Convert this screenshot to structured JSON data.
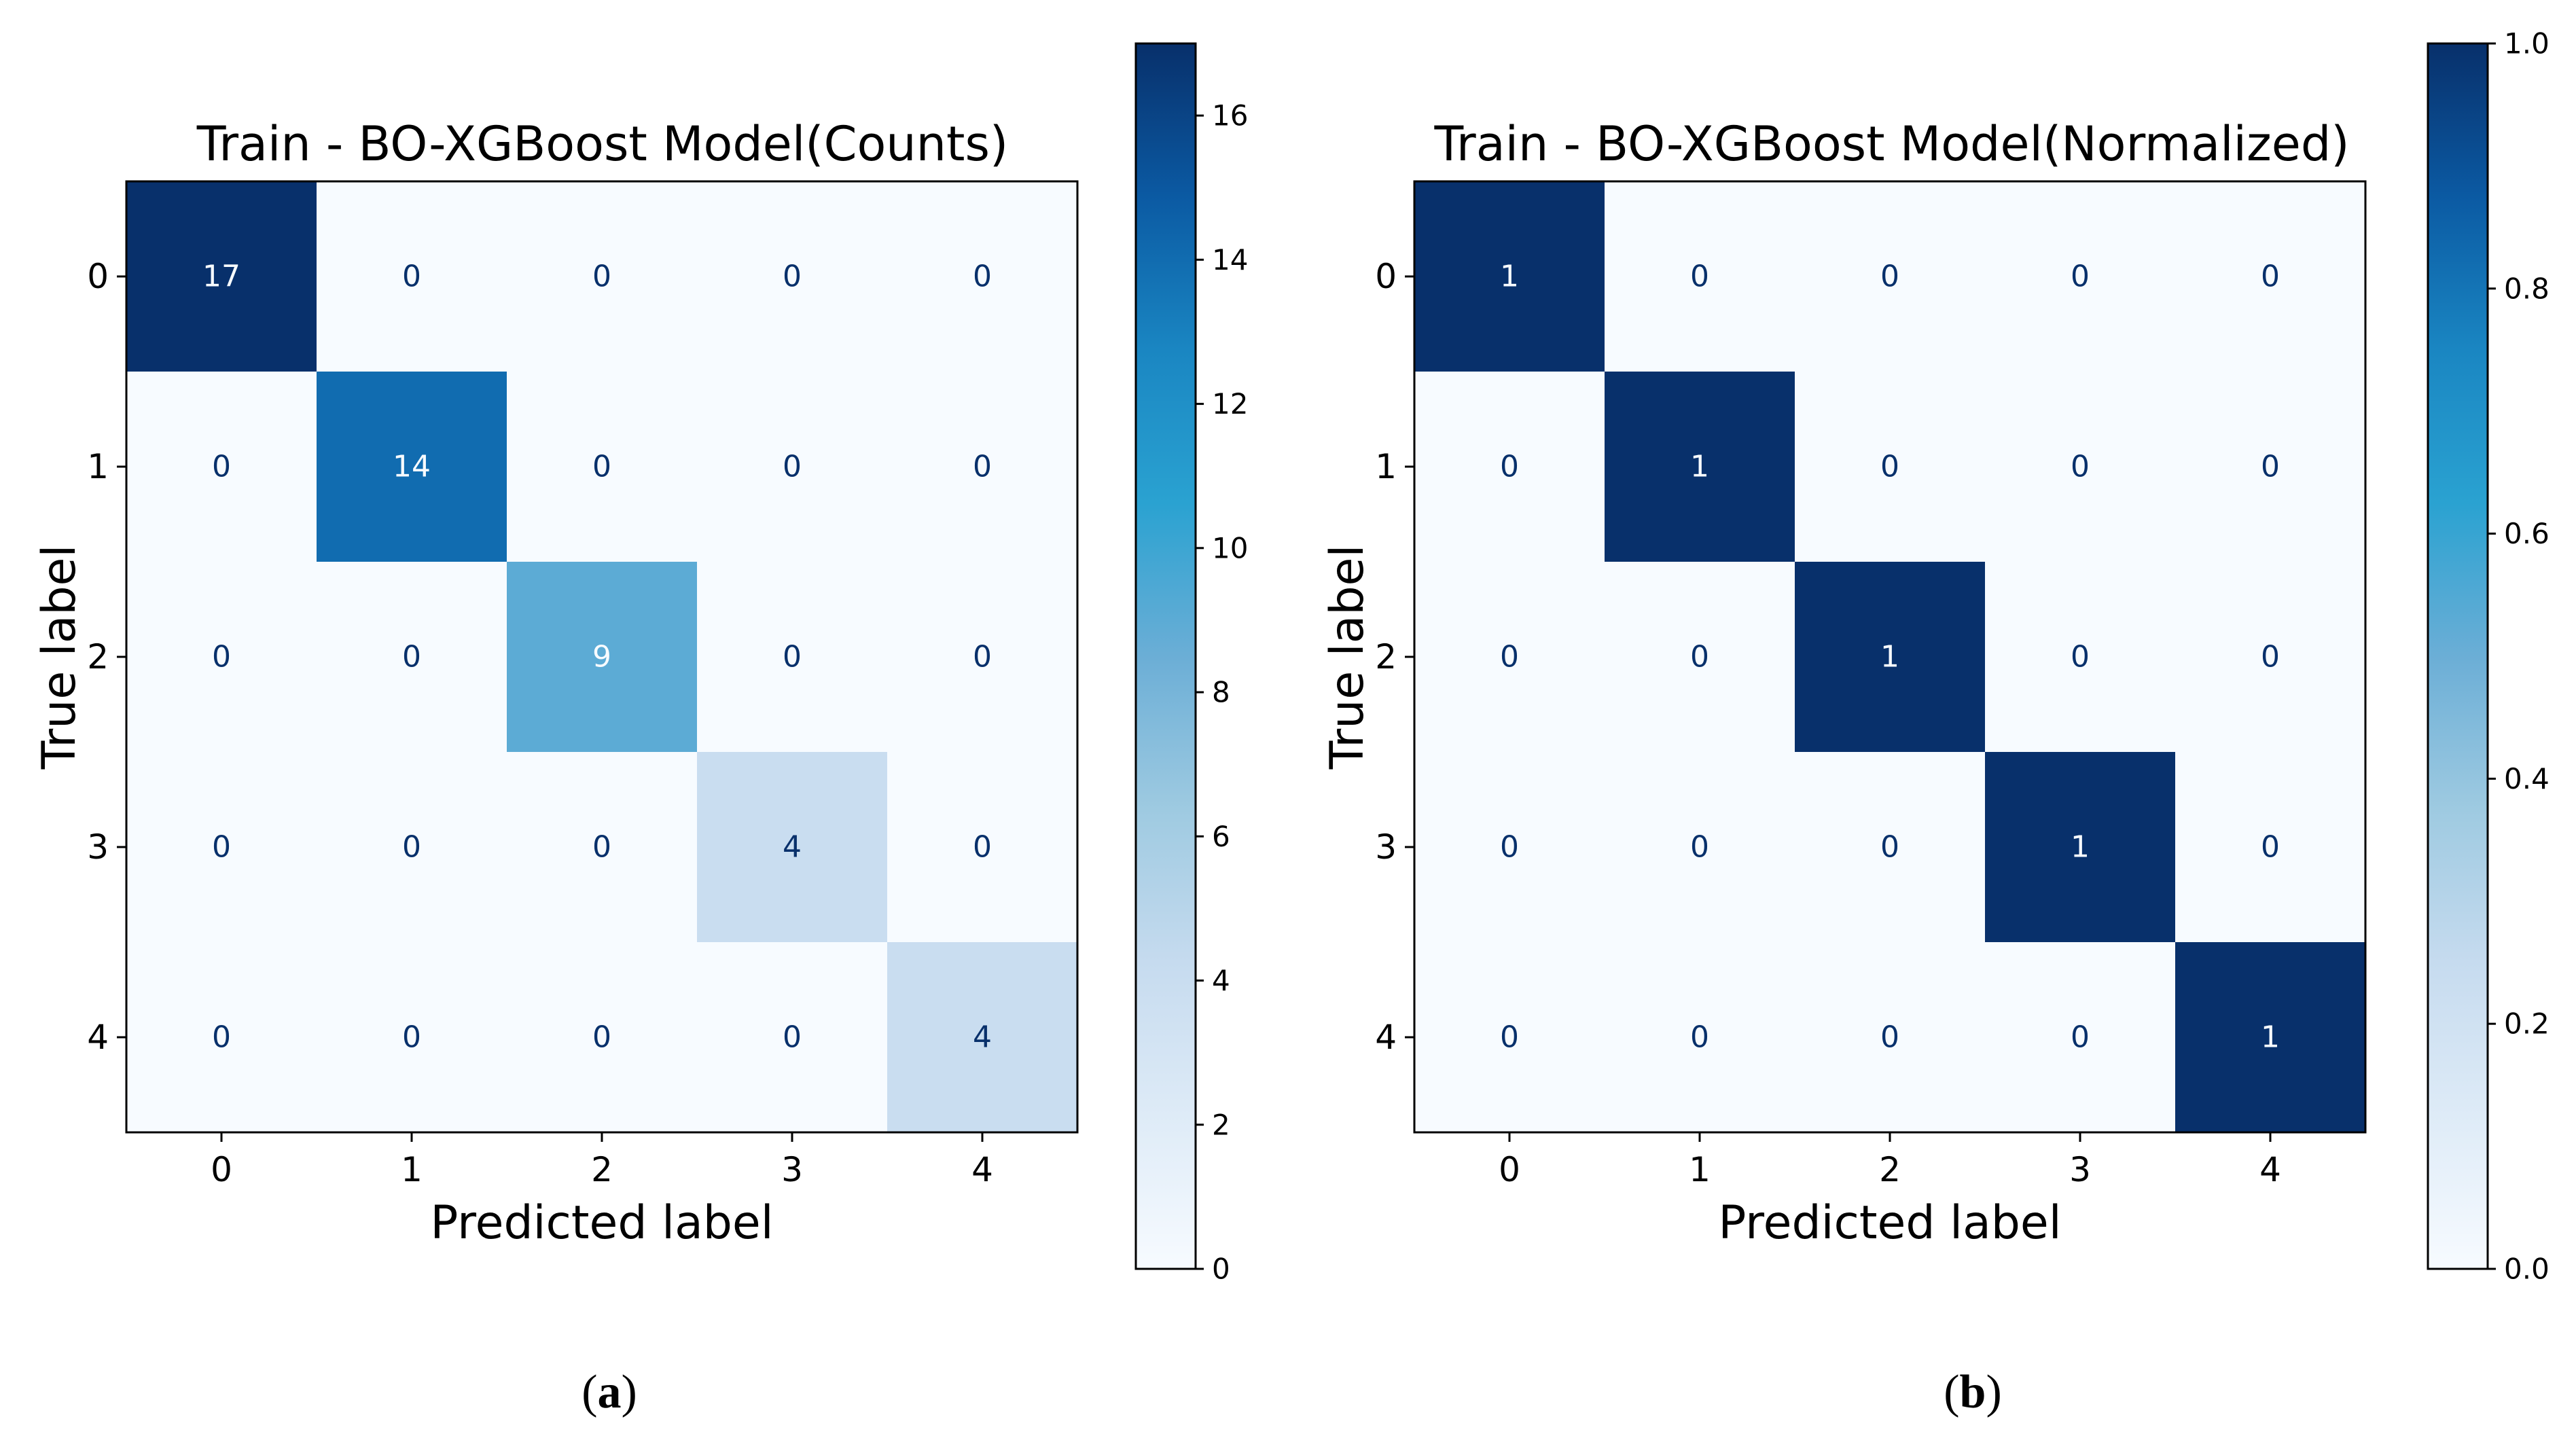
{
  "figure": {
    "panels": [
      {
        "caption_open": "(",
        "caption_letter": "a",
        "caption_close": ")"
      },
      {
        "caption_open": "(",
        "caption_letter": "b",
        "caption_close": ")"
      }
    ]
  },
  "chart_data": [
    {
      "type": "heatmap",
      "title": "Train - BO-XGBoost Model(Counts)",
      "xlabel": "Predicted label",
      "ylabel": "True label",
      "x_categories": [
        "0",
        "1",
        "2",
        "3",
        "4"
      ],
      "y_categories": [
        "0",
        "1",
        "2",
        "3",
        "4"
      ],
      "values": [
        [
          17,
          0,
          0,
          0,
          0
        ],
        [
          0,
          14,
          0,
          0,
          0
        ],
        [
          0,
          0,
          9,
          0,
          0
        ],
        [
          0,
          0,
          0,
          4,
          0
        ],
        [
          0,
          0,
          0,
          0,
          4
        ]
      ],
      "cell_labels": [
        [
          "17",
          "0",
          "0",
          "0",
          "0"
        ],
        [
          "0",
          "14",
          "0",
          "0",
          "0"
        ],
        [
          "0",
          "0",
          "9",
          "0",
          "0"
        ],
        [
          "0",
          "0",
          "0",
          "4",
          "0"
        ],
        [
          "0",
          "0",
          "0",
          "0",
          "4"
        ]
      ],
      "colormap": "Blues",
      "colorbar": {
        "range": [
          0,
          17
        ],
        "ticks": [
          0,
          2,
          4,
          6,
          8,
          10,
          12,
          14,
          16
        ],
        "tick_labels": [
          "0",
          "2",
          "4",
          "6",
          "8",
          "10",
          "12",
          "14",
          "16"
        ]
      }
    },
    {
      "type": "heatmap",
      "title": "Train - BO-XGBoost Model(Normalized)",
      "xlabel": "Predicted label",
      "ylabel": "True label",
      "x_categories": [
        "0",
        "1",
        "2",
        "3",
        "4"
      ],
      "y_categories": [
        "0",
        "1",
        "2",
        "3",
        "4"
      ],
      "values": [
        [
          1,
          0,
          0,
          0,
          0
        ],
        [
          0,
          1,
          0,
          0,
          0
        ],
        [
          0,
          0,
          1,
          0,
          0
        ],
        [
          0,
          0,
          0,
          1,
          0
        ],
        [
          0,
          0,
          0,
          0,
          1
        ]
      ],
      "cell_labels": [
        [
          "1",
          "0",
          "0",
          "0",
          "0"
        ],
        [
          "0",
          "1",
          "0",
          "0",
          "0"
        ],
        [
          "0",
          "0",
          "1",
          "0",
          "0"
        ],
        [
          "0",
          "0",
          "0",
          "1",
          "0"
        ],
        [
          "0",
          "0",
          "0",
          "0",
          "1"
        ]
      ],
      "colormap": "Blues",
      "colorbar": {
        "range": [
          0,
          1
        ],
        "ticks": [
          0,
          0.2,
          0.4,
          0.6,
          0.8,
          1.0
        ],
        "tick_labels": [
          "0.0",
          "0.2",
          "0.4",
          "0.6",
          "0.8",
          "1.0"
        ]
      }
    }
  ]
}
